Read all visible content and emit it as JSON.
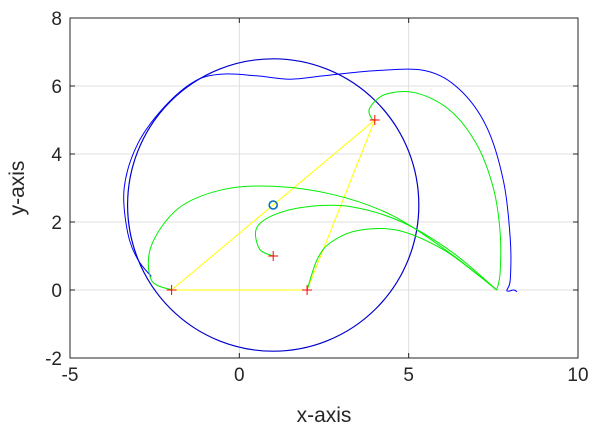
{
  "chart_data": {
    "type": "line",
    "title": "",
    "xlabel": "x-axis",
    "ylabel": "y-axis",
    "xlim": [
      -5,
      10
    ],
    "ylim": [
      -2,
      8
    ],
    "xticks": [
      -5,
      0,
      5,
      10
    ],
    "yticks": [
      -2,
      0,
      2,
      4,
      6,
      8
    ],
    "grid": true,
    "colors": {
      "circle": "#0000cc",
      "blue_path": "#0000ff",
      "green_path": "#00ee00",
      "triangle": "#ffff00",
      "marker": "#ff0000",
      "center_marker": "#0072bd"
    },
    "circle": {
      "cx": 1.0,
      "cy": 2.5,
      "r": 4.3
    },
    "center_marker": {
      "x": 1.0,
      "y": 2.5
    },
    "triangle": [
      [
        -2,
        0
      ],
      [
        2,
        0
      ],
      [
        4,
        5
      ]
    ],
    "plus_markers": [
      [
        -2,
        0
      ],
      [
        2,
        0
      ],
      [
        4,
        5
      ],
      [
        1,
        1
      ]
    ],
    "series": [
      {
        "color": "#0000ff",
        "points": [
          [
            8.2,
            -0.05
          ],
          [
            8.1,
            0.0
          ],
          [
            7.9,
            -0.02
          ],
          [
            8.0,
            0.3
          ],
          [
            8.0,
            1.5
          ],
          [
            7.8,
            3.2
          ],
          [
            7.3,
            4.8
          ],
          [
            6.5,
            5.9
          ],
          [
            5.5,
            6.45
          ],
          [
            4.0,
            6.45
          ],
          [
            2.5,
            6.3
          ],
          [
            1.5,
            6.2
          ],
          [
            0.5,
            6.3
          ],
          [
            -0.5,
            6.35
          ],
          [
            -1.3,
            6.15
          ],
          [
            -2.2,
            5.4
          ],
          [
            -3.0,
            4.3
          ],
          [
            -3.4,
            3.0
          ],
          [
            -3.3,
            1.7
          ],
          [
            -3.0,
            0.9
          ],
          [
            -2.6,
            0.4
          ]
        ]
      },
      {
        "color": "#00ee00",
        "points": [
          [
            -2.0,
            0.0
          ],
          [
            -2.6,
            0.3
          ],
          [
            -2.6,
            1.3
          ],
          [
            -1.8,
            2.4
          ],
          [
            -0.5,
            2.95
          ],
          [
            1.0,
            3.05
          ],
          [
            2.8,
            2.8
          ],
          [
            4.5,
            2.2
          ],
          [
            6.2,
            1.1
          ],
          [
            7.6,
            0.0
          ]
        ]
      },
      {
        "color": "#00ee00",
        "points": [
          [
            1.0,
            1.0
          ],
          [
            0.6,
            1.2
          ],
          [
            0.5,
            1.8
          ],
          [
            1.0,
            2.2
          ],
          [
            2.0,
            2.45
          ],
          [
            3.3,
            2.45
          ],
          [
            4.8,
            2.0
          ],
          [
            6.3,
            1.1
          ],
          [
            7.6,
            0.0
          ]
        ]
      },
      {
        "color": "#00ee00",
        "points": [
          [
            2.0,
            0.0
          ],
          [
            2.3,
            0.9
          ],
          [
            2.7,
            1.4
          ],
          [
            3.5,
            1.75
          ],
          [
            4.7,
            1.75
          ],
          [
            6.0,
            1.2
          ],
          [
            7.1,
            0.4
          ],
          [
            7.6,
            0.0
          ]
        ]
      },
      {
        "color": "#00ee00",
        "points": [
          [
            7.6,
            0.0
          ],
          [
            7.7,
            0.5
          ],
          [
            7.7,
            1.7
          ],
          [
            7.5,
            3.0
          ],
          [
            7.0,
            4.3
          ],
          [
            6.2,
            5.3
          ],
          [
            5.2,
            5.8
          ],
          [
            4.3,
            5.75
          ],
          [
            3.85,
            5.35
          ],
          [
            3.9,
            5.05
          ],
          [
            4.0,
            5.0
          ]
        ]
      }
    ]
  }
}
